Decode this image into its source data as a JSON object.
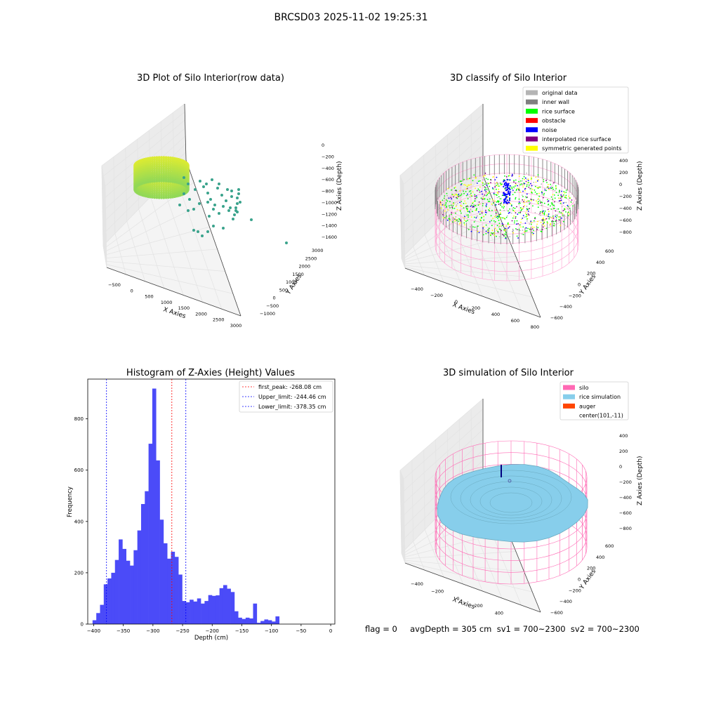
{
  "figure": {
    "title": "BRCSD03 2025-11-02 19:25:31",
    "footer": "flag = 0     avgDepth = 305 cm  sv1 = 700~2300  sv2 = 700~2300"
  },
  "colors": {
    "hist_bar": "#4b4bf8",
    "first_peak_line": "#ff0000",
    "limit_line": "#0000ff",
    "original": "#b4b4b4",
    "inner_wall": "#808080",
    "rice_surface": "#00ff00",
    "obstacle": "#ff0000",
    "noise": "#0000ff",
    "interpolated": "#800080",
    "symmetric": "#ffff00",
    "silo": "#ff69b4",
    "rice_sim": "#87ceeb",
    "auger": "#ff4500"
  },
  "panel_raw": {
    "title": "3D Plot of Silo Interior(row data)",
    "xlabel": "X Axies",
    "ylabel": "Y Axies",
    "zlabel": "Z Axies (Depth)",
    "xticks": [
      "−500",
      "0",
      "500",
      "1000",
      "1500",
      "2000",
      "2500",
      "3000"
    ],
    "yticks": [
      "−1000",
      "−500",
      "0",
      "500",
      "1000",
      "1500",
      "2000",
      "2500",
      "3000"
    ],
    "zticks": [
      "0",
      "−200",
      "−400",
      "−600",
      "−800",
      "−1000",
      "−1200",
      "−1400",
      "−1600"
    ]
  },
  "panel_classify": {
    "title": "3D classify of Silo Interior",
    "xlabel": "X Axies",
    "ylabel": "Y Axies",
    "zlabel": "Z Axies (Depth)",
    "xticks": [
      "−400",
      "−200",
      "0",
      "200",
      "400",
      "600",
      "800"
    ],
    "yticks": [
      "−600",
      "−400",
      "−200",
      "0",
      "200",
      "400",
      "600"
    ],
    "zticks": [
      "400",
      "200",
      "0",
      "−200",
      "−400",
      "−600",
      "−800"
    ],
    "legend": [
      {
        "label": "original data",
        "color": "#b4b4b4"
      },
      {
        "label": "inner wall",
        "color": "#808080"
      },
      {
        "label": "rice surface",
        "color": "#00ff00"
      },
      {
        "label": "obstacle",
        "color": "#ff0000"
      },
      {
        "label": "noise",
        "color": "#0000ff"
      },
      {
        "label": "interpolated rice surface",
        "color": "#800080"
      },
      {
        "label": "symmetric generated points",
        "color": "#ffff00"
      }
    ]
  },
  "panel_sim": {
    "title": "3D simulation of Silo Interior",
    "xlabel": "X Axies",
    "ylabel": "Y Axies",
    "zlabel": "Z Axies (Depth)",
    "xticks": [
      "−400",
      "−200",
      "0",
      "200",
      "400",
      "600"
    ],
    "yticks": [
      "−600",
      "−400",
      "−200",
      "0",
      "200",
      "400",
      "600"
    ],
    "zticks": [
      "400",
      "200",
      "0",
      "−200",
      "−400",
      "−600",
      "−800"
    ],
    "legend": [
      {
        "label": "silo",
        "color": "#ff69b4"
      },
      {
        "label": "rice simulation",
        "color": "#87ceeb"
      },
      {
        "label": "auger",
        "color": "#ff4500"
      },
      {
        "label": "center(101,-11)",
        "color": ""
      }
    ]
  },
  "chart_data": [
    {
      "type": "bar",
      "title": "Histogram of Z-Axies (Height) Values",
      "xlabel": "Depth (cm)",
      "ylabel": "Frequency",
      "xlim": [
        -410,
        7
      ],
      "ylim": [
        0,
        955
      ],
      "bin_width": 6.3,
      "bin_start": -401.9,
      "values": [
        15,
        43,
        75,
        155,
        178,
        200,
        250,
        330,
        293,
        247,
        228,
        288,
        365,
        468,
        518,
        703,
        918,
        638,
        407,
        315,
        255,
        282,
        262,
        193,
        90,
        85,
        95,
        88,
        100,
        80,
        90,
        113,
        110,
        112,
        140,
        152,
        138,
        125,
        50,
        25,
        20,
        25,
        22,
        80,
        5,
        12,
        18,
        15,
        10,
        30
      ],
      "xticks": [
        -400,
        -350,
        -300,
        -250,
        -200,
        -150,
        -100,
        -50,
        0
      ],
      "yticks": [
        0,
        200,
        400,
        600,
        800
      ],
      "grid": false,
      "legend_position": "top-right",
      "lines": [
        {
          "name": "first_peak: -268.08 cm",
          "x": -268.08,
          "color": "#ff0000"
        },
        {
          "name": "Upper_limit: -244.46 cm",
          "x": -244.46,
          "color": "#0000ff"
        },
        {
          "name": "Lower_limit: -378.35 cm",
          "x": -378.35,
          "color": "#0000ff"
        }
      ]
    }
  ]
}
